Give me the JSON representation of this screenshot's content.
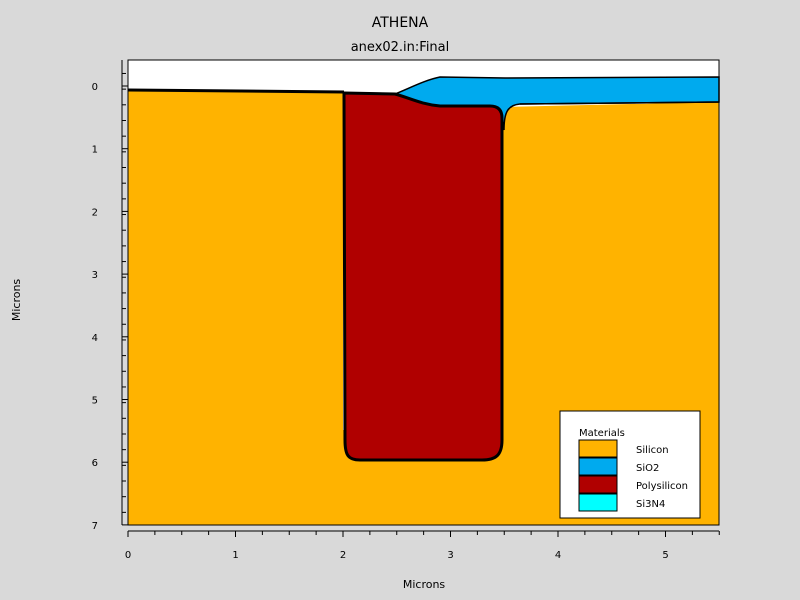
{
  "title": "ATHENA",
  "subtitle": "anex02.in:Final",
  "x_axis": {
    "label": "Microns",
    "range": [
      0,
      5.5
    ],
    "ticks": [
      0,
      1,
      2,
      3,
      4,
      5
    ],
    "tick_labels": [
      "0",
      "1",
      "2",
      "3",
      "4",
      "5"
    ]
  },
  "y_axis": {
    "label": "Microns",
    "range": [
      -0.3,
      7
    ],
    "inverted": true,
    "ticks": [
      0,
      1,
      2,
      3,
      4,
      5,
      6,
      7
    ],
    "tick_labels": [
      "0",
      "1",
      "2",
      "3",
      "4",
      "5",
      "6",
      "7"
    ]
  },
  "legend": {
    "title": "Materials",
    "placement": "bottom-right",
    "items": [
      {
        "label": "Silicon",
        "color": "#ffb300"
      },
      {
        "label": "SiO2",
        "color": "#00aaee"
      },
      {
        "label": "Polysilicon",
        "color": "#b00000"
      },
      {
        "label": "Si3N4",
        "color": "#00ffff"
      }
    ]
  },
  "colors": {
    "background": "#d9d9d9",
    "empty_region": "#ffffff",
    "outline": "#000000"
  },
  "structure": {
    "silicon_top_left": [
      [
        0,
        0.1
      ],
      [
        2.0,
        0.12
      ]
    ],
    "silicon_top_right": [
      [
        3.5,
        0.33
      ],
      [
        5.5,
        0.27
      ]
    ],
    "polysilicon_trench": {
      "x_left": 2.0,
      "x_right": 3.5,
      "top": 0.12,
      "bottom": 5.99
    },
    "oxide_top": [
      [
        2.8,
        -0.12
      ],
      [
        3.5,
        -0.12
      ],
      [
        5.5,
        -0.14
      ]
    ],
    "oxide_bottom": [
      [
        3.5,
        0.31
      ],
      [
        5.5,
        0.27
      ]
    ]
  }
}
